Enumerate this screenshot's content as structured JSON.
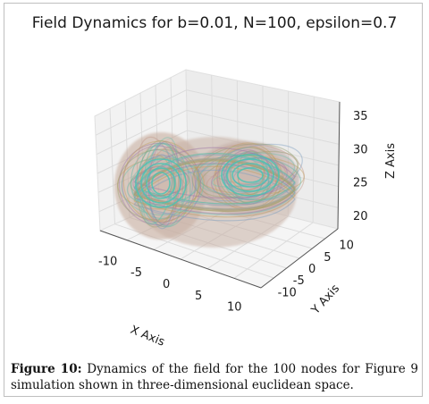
{
  "chart_data": {
    "type": "scatter",
    "projection": "3d",
    "title": "Field Dynamics for b=0.01, N=100, epsilon=0.7",
    "xlabel": "X Axis",
    "ylabel": "Y Axis",
    "zlabel": "Z Axis",
    "xlim": [
      -12,
      12
    ],
    "ylim": [
      -12,
      12
    ],
    "zlim": [
      18,
      37
    ],
    "x_ticks": [
      "-10",
      "-5",
      "0",
      "5",
      "10"
    ],
    "y_ticks": [
      "-10",
      "-5",
      "0",
      "5",
      "10"
    ],
    "z_ticks": [
      "20",
      "25",
      "30",
      "35"
    ],
    "grid": true,
    "series_count": 100,
    "colors": [
      "#5fb8a8",
      "#c49a8a",
      "#9aa070",
      "#a07aa8",
      "#7fa0c0",
      "#c0a060",
      "#6fc0b0"
    ]
  },
  "caption": {
    "label": "Figure 10:",
    "text": " Dynamics of the field for the 100 nodes for Figure 9 simulation shown in three-dimensional euclidean space."
  }
}
